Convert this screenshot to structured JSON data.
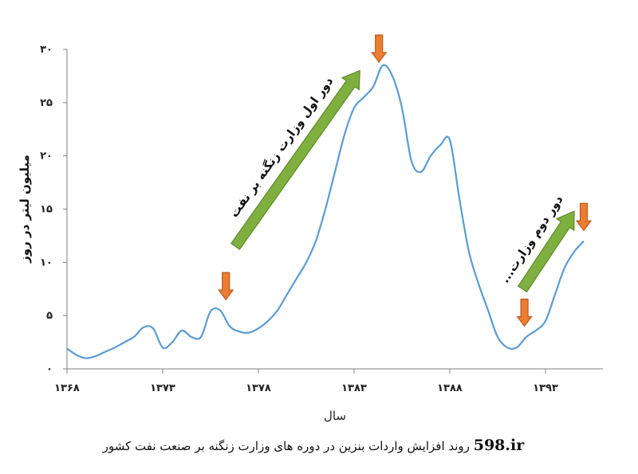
{
  "chart_data": {
    "type": "line",
    "title": "",
    "xlabel": "سال",
    "ylabel": "میلیون لیتر در روز",
    "xlim": [
      1368,
      1396
    ],
    "ylim": [
      0,
      30
    ],
    "x_ticks": [
      {
        "value": 1368,
        "label": "۱۳۶۸"
      },
      {
        "value": 1373,
        "label": "۱۳۷۳"
      },
      {
        "value": 1378,
        "label": "۱۳۷۸"
      },
      {
        "value": 1383,
        "label": "۱۳۸۳"
      },
      {
        "value": 1388,
        "label": "۱۳۸۸"
      },
      {
        "value": 1393,
        "label": "۱۳۹۳"
      }
    ],
    "y_ticks": [
      {
        "value": 0,
        "label": "۰"
      },
      {
        "value": 5,
        "label": "۵"
      },
      {
        "value": 10,
        "label": "۱۰"
      },
      {
        "value": 15,
        "label": "۱۵"
      },
      {
        "value": 20,
        "label": "۲۰"
      },
      {
        "value": 25,
        "label": "۲۵"
      },
      {
        "value": 30,
        "label": "۳۰"
      }
    ],
    "grid": false,
    "line_color": "#5b9bd5",
    "series": [
      {
        "points": [
          [
            1368.0,
            1.9
          ],
          [
            1368.5,
            1.3
          ],
          [
            1369.0,
            1.0
          ],
          [
            1369.5,
            1.2
          ],
          [
            1370.0,
            1.6
          ],
          [
            1370.5,
            2.0
          ],
          [
            1371.0,
            2.5
          ],
          [
            1371.5,
            3.0
          ],
          [
            1372.0,
            3.9
          ],
          [
            1372.5,
            3.8
          ],
          [
            1373.0,
            2.0
          ],
          [
            1373.5,
            2.5
          ],
          [
            1374.0,
            3.6
          ],
          [
            1374.5,
            3.0
          ],
          [
            1375.0,
            3.0
          ],
          [
            1375.5,
            5.4
          ],
          [
            1376.0,
            5.5
          ],
          [
            1376.5,
            4.0
          ],
          [
            1377.0,
            3.5
          ],
          [
            1377.5,
            3.4
          ],
          [
            1378.0,
            3.8
          ],
          [
            1378.5,
            4.5
          ],
          [
            1379.0,
            5.5
          ],
          [
            1379.5,
            7.0
          ],
          [
            1380.0,
            8.5
          ],
          [
            1380.5,
            10.0
          ],
          [
            1381.0,
            12.0
          ],
          [
            1381.5,
            15.0
          ],
          [
            1382.0,
            18.5
          ],
          [
            1382.5,
            22.0
          ],
          [
            1383.0,
            24.5
          ],
          [
            1383.5,
            25.5
          ],
          [
            1384.0,
            26.5
          ],
          [
            1384.5,
            28.5
          ],
          [
            1385.0,
            27.5
          ],
          [
            1385.5,
            24.5
          ],
          [
            1386.0,
            19.5
          ],
          [
            1386.5,
            18.5
          ],
          [
            1387.0,
            20.0
          ],
          [
            1387.5,
            21.0
          ],
          [
            1388.0,
            21.5
          ],
          [
            1388.5,
            16.0
          ],
          [
            1389.0,
            11.0
          ],
          [
            1389.5,
            8.0
          ],
          [
            1390.0,
            5.5
          ],
          [
            1390.5,
            3.0
          ],
          [
            1391.0,
            2.0
          ],
          [
            1391.5,
            2.0
          ],
          [
            1392.0,
            3.0
          ],
          [
            1392.5,
            3.6
          ],
          [
            1393.0,
            4.5
          ],
          [
            1393.5,
            7.0
          ],
          [
            1394.0,
            9.5
          ],
          [
            1394.5,
            11.0
          ],
          [
            1395.0,
            12.0
          ]
        ]
      }
    ],
    "annotations": [
      {
        "type": "arrow-up",
        "text": "دور اول وزارت زنگنه بر نفت",
        "from": [
          1376.8,
          11.5
        ],
        "to": [
          1383.3,
          28.0
        ]
      },
      {
        "type": "arrow-up",
        "text": "دور دوم وزارت...",
        "from": [
          1391.8,
          7.5
        ],
        "to": [
          1394.5,
          14.8
        ]
      },
      {
        "type": "marker-down",
        "x": 1376.3,
        "y": 6.5
      },
      {
        "type": "marker-down",
        "x": 1384.3,
        "y": 28.8
      },
      {
        "type": "marker-down",
        "x": 1391.9,
        "y": 4.0
      },
      {
        "type": "marker-down",
        "x": 1395.0,
        "y": 13.0
      }
    ]
  },
  "caption": {
    "text": "روند افزایش واردات بنزین در دوره های وزارت زنگنه بر صنعت نفت کشور",
    "brand": "598.ir"
  }
}
